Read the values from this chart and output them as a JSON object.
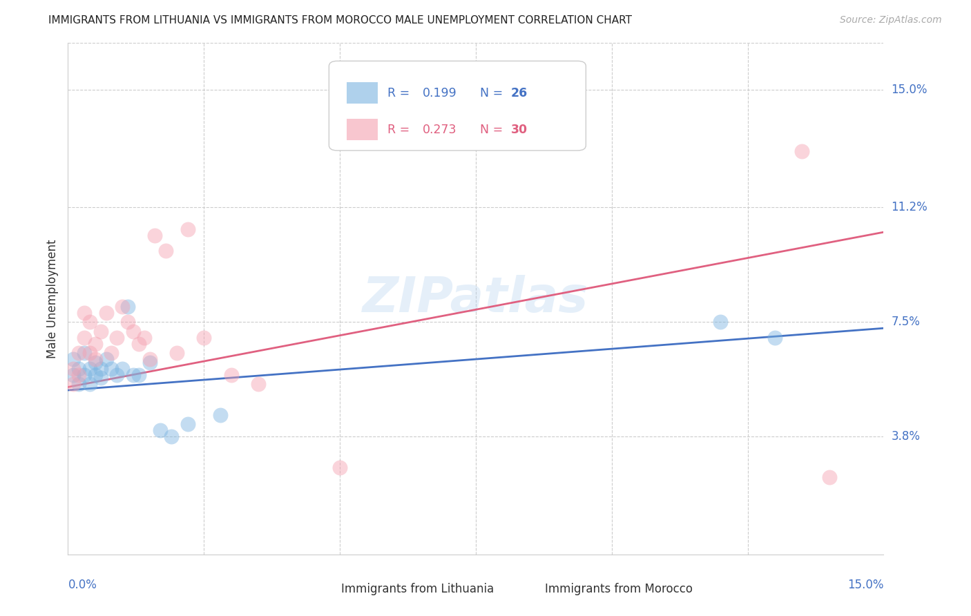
{
  "title": "IMMIGRANTS FROM LITHUANIA VS IMMIGRANTS FROM MOROCCO MALE UNEMPLOYMENT CORRELATION CHART",
  "source": "Source: ZipAtlas.com",
  "ylabel": "Male Unemployment",
  "yticks": [
    0.038,
    0.075,
    0.112,
    0.15
  ],
  "ytick_labels": [
    "3.8%",
    "7.5%",
    "11.2%",
    "15.0%"
  ],
  "xmin": 0.0,
  "xmax": 0.15,
  "ymin": 0.0,
  "ymax": 0.165,
  "lithuania_R": 0.199,
  "lithuania_N": 26,
  "morocco_R": 0.273,
  "morocco_N": 30,
  "legend_label_1": "Immigrants from Lithuania",
  "legend_label_2": "Immigrants from Morocco",
  "blue_color": "#7ab3e0",
  "pink_color": "#f4a0b0",
  "blue_line_color": "#4472c4",
  "pink_line_color": "#e06080",
  "blue_text_color": "#4472c4",
  "pink_text_color": "#e06080",
  "dark_text_color": "#333333",
  "grid_color": "#cccccc",
  "watermark": "ZIPatlas",
  "lithuania_x": [
    0.001,
    0.001,
    0.002,
    0.002,
    0.003,
    0.003,
    0.004,
    0.004,
    0.005,
    0.005,
    0.006,
    0.006,
    0.007,
    0.008,
    0.009,
    0.01,
    0.011,
    0.012,
    0.013,
    0.015,
    0.017,
    0.019,
    0.022,
    0.028,
    0.12,
    0.13
  ],
  "lithuania_y": [
    0.063,
    0.058,
    0.06,
    0.055,
    0.065,
    0.058,
    0.06,
    0.055,
    0.062,
    0.058,
    0.06,
    0.057,
    0.063,
    0.06,
    0.058,
    0.06,
    0.08,
    0.058,
    0.058,
    0.062,
    0.04,
    0.038,
    0.042,
    0.045,
    0.075,
    0.07
  ],
  "morocco_x": [
    0.001,
    0.001,
    0.002,
    0.002,
    0.003,
    0.003,
    0.004,
    0.004,
    0.005,
    0.005,
    0.006,
    0.007,
    0.008,
    0.009,
    0.01,
    0.011,
    0.012,
    0.013,
    0.014,
    0.015,
    0.016,
    0.018,
    0.02,
    0.022,
    0.025,
    0.03,
    0.035,
    0.05,
    0.135,
    0.14
  ],
  "morocco_y": [
    0.06,
    0.055,
    0.065,
    0.058,
    0.07,
    0.078,
    0.075,
    0.065,
    0.068,
    0.063,
    0.072,
    0.078,
    0.065,
    0.07,
    0.08,
    0.075,
    0.072,
    0.068,
    0.07,
    0.063,
    0.103,
    0.098,
    0.065,
    0.105,
    0.07,
    0.058,
    0.055,
    0.028,
    0.13,
    0.025
  ],
  "blue_line_x0": 0.0,
  "blue_line_y0": 0.053,
  "blue_line_x1": 0.15,
  "blue_line_y1": 0.073,
  "pink_line_x0": 0.0,
  "pink_line_y0": 0.054,
  "pink_line_x1": 0.15,
  "pink_line_y1": 0.104
}
